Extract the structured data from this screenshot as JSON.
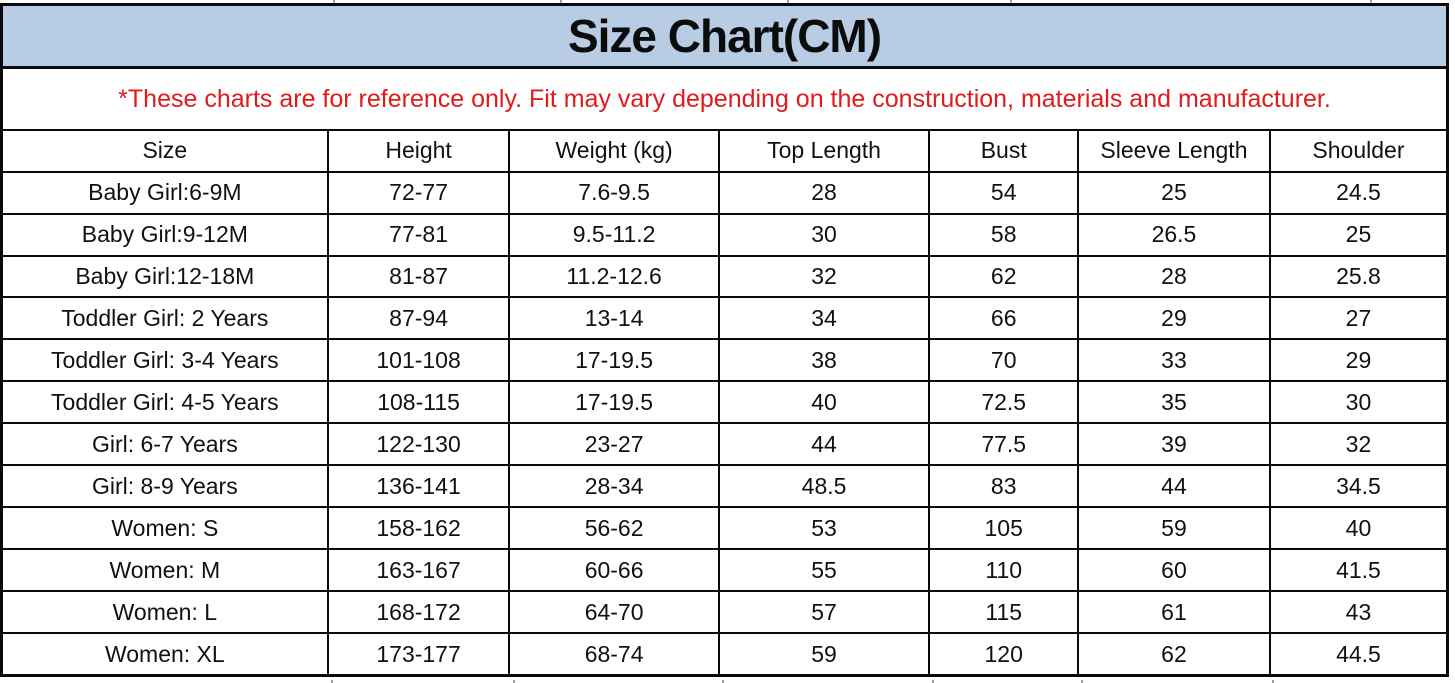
{
  "title": "Size Chart(CM)",
  "disclaimer": "*These charts are for reference only. Fit may vary depending on the construction, materials and manufacturer.",
  "colors": {
    "title_bg": "#b8cce4",
    "disclaimer_text": "#e01b1b",
    "grid_border": "#0a0a0a",
    "cell_text": "#111111"
  },
  "chart_data": {
    "type": "table",
    "columns": [
      "Size",
      "Height",
      "Weight (kg)",
      "Top Length",
      "Bust",
      "Sleeve Length",
      "Shoulder"
    ],
    "rows": [
      [
        "Baby Girl:6-9M",
        "72-77",
        "7.6-9.5",
        "28",
        "54",
        "25",
        "24.5"
      ],
      [
        "Baby Girl:9-12M",
        "77-81",
        "9.5-11.2",
        "30",
        "58",
        "26.5",
        "25"
      ],
      [
        "Baby Girl:12-18M",
        "81-87",
        "11.2-12.6",
        "32",
        "62",
        "28",
        "25.8"
      ],
      [
        "Toddler Girl: 2 Years",
        "87-94",
        "13-14",
        "34",
        "66",
        "29",
        "27"
      ],
      [
        "Toddler Girl: 3-4 Years",
        "101-108",
        "17-19.5",
        "38",
        "70",
        "33",
        "29"
      ],
      [
        "Toddler Girl: 4-5 Years",
        "108-115",
        "17-19.5",
        "40",
        "72.5",
        "35",
        "30"
      ],
      [
        "Girl: 6-7 Years",
        "122-130",
        "23-27",
        "44",
        "77.5",
        "39",
        "32"
      ],
      [
        "Girl: 8-9 Years",
        "136-141",
        "28-34",
        "48.5",
        "83",
        "44",
        "34.5"
      ],
      [
        "Women: S",
        "158-162",
        "56-62",
        "53",
        "105",
        "59",
        "40"
      ],
      [
        "Women: M",
        "163-167",
        "60-66",
        "55",
        "110",
        "60",
        "41.5"
      ],
      [
        "Women: L",
        "168-172",
        "64-70",
        "57",
        "115",
        "61",
        "43"
      ],
      [
        "Women: XL",
        "173-177",
        "68-74",
        "59",
        "120",
        "62",
        "44.5"
      ]
    ]
  }
}
